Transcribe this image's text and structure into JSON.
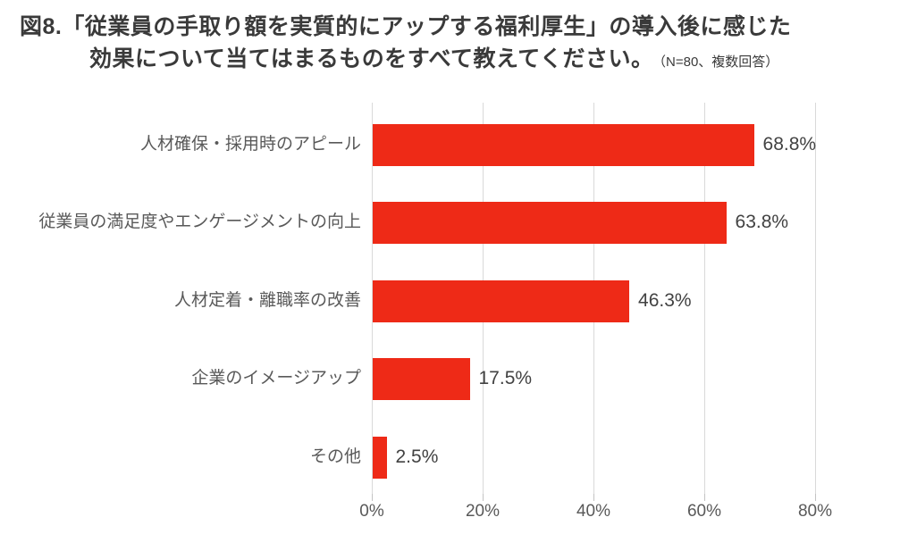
{
  "title": {
    "line1": "図8.「従業員の手取り額を実質的にアップする福利厚生」の導入後に感じた",
    "line2": "効果について当てはまるものをすべて教えてください。",
    "note": "（N=80、複数回答）"
  },
  "colors": {
    "bar": "#ee2a17",
    "title_text": "#3a3a3a",
    "category_label_text": "#595959",
    "value_label_text": "#424242",
    "gridline": "#d9d9d9"
  },
  "chart_data": {
    "type": "bar",
    "orientation": "horizontal",
    "title": "図8.「従業員の手取り額を実質的にアップする福利厚生」の導入後に感じた効果について当てはまるものをすべて教えてください。",
    "subtitle": "（N=80、複数回答）",
    "sample_size": "N=80",
    "answer_type": "複数回答",
    "categories": [
      "人材確保・採用時のアピール",
      "従業員の満足度やエンゲージメントの向上",
      "人材定着・離職率の改善",
      "企業のイメージアップ",
      "その他"
    ],
    "values": [
      68.8,
      63.8,
      46.3,
      17.5,
      2.5
    ],
    "value_labels": [
      "68.8%",
      "63.8%",
      "46.3%",
      "17.5%",
      "2.5%"
    ],
    "x_ticks": [
      "0%",
      "20%",
      "40%",
      "60%",
      "80%"
    ],
    "x_tick_values": [
      0,
      20,
      40,
      60,
      80
    ],
    "xlim": [
      0,
      80
    ],
    "xlabel": "",
    "ylabel": "",
    "grid": true,
    "legend": false
  }
}
